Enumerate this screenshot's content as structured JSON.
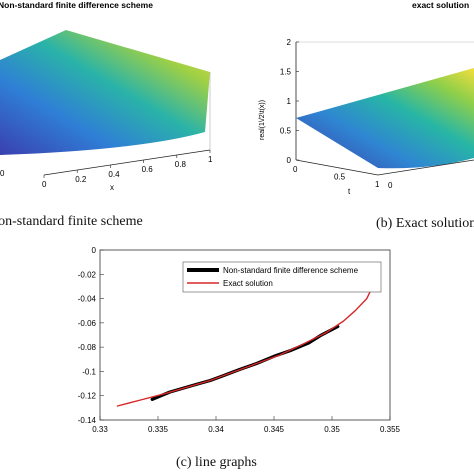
{
  "captions": {
    "a": "Non-standard finite scheme",
    "b": "(b) Exact solution",
    "c": "(c) line graphs"
  },
  "chart_data": [
    {
      "type": "surface",
      "title": "Non-standard finite difference scheme",
      "xlabel": "x",
      "ylabel": "",
      "xticks": [
        "0",
        "0.2",
        "0.4",
        "0.6",
        "0.8",
        "1"
      ],
      "yticks": [
        "0"
      ],
      "colormap": "parula",
      "colors": {
        "low": "#3a3fb0",
        "mid": "#2ab3a8",
        "high": "#f9e03a"
      }
    },
    {
      "type": "surface",
      "title": "exact solution",
      "xlabel": "t",
      "ylabel": "real(1\\/2\\t(x))",
      "zticks": [
        "0",
        "0.5",
        "1",
        "1.5",
        "2"
      ],
      "xticks": [
        "0",
        "0.5",
        "1"
      ],
      "yticks": [
        "0"
      ],
      "zlim": [
        0,
        2
      ],
      "colormap": "parula"
    },
    {
      "type": "line",
      "title": "",
      "xlabel": "",
      "ylabel": "",
      "xlim": [
        0.33,
        0.355
      ],
      "ylim": [
        -0.14,
        0
      ],
      "xticks": [
        "0.33",
        "0.335",
        "0.34",
        "0.345",
        "0.35",
        "0.355"
      ],
      "yticks": [
        "0",
        "-0.02",
        "-0.04",
        "-0.06",
        "-0.08",
        "-0.1",
        "-0.12",
        "-0.14"
      ],
      "xtick_values": [
        0.33,
        0.335,
        0.34,
        0.345,
        0.35,
        0.355
      ],
      "ytick_values": [
        0,
        -0.02,
        -0.04,
        -0.06,
        -0.08,
        -0.1,
        -0.12,
        -0.14
      ],
      "legend": "top-right",
      "series": [
        {
          "name": "Non-standard finite difference scheme",
          "color": "#000000",
          "x": [
            0.3345,
            0.336,
            0.338,
            0.3395,
            0.3405,
            0.342,
            0.3435,
            0.345,
            0.3465,
            0.348,
            0.349,
            0.3505
          ],
          "y": [
            -0.123,
            -0.117,
            -0.1115,
            -0.1075,
            -0.104,
            -0.0985,
            -0.0935,
            -0.0875,
            -0.0825,
            -0.0765,
            -0.0705,
            -0.063
          ]
        },
        {
          "name": "Exact solution",
          "color": "#d62728",
          "x": [
            0.3315,
            0.3335,
            0.3355,
            0.3375,
            0.3395,
            0.3415,
            0.3435,
            0.3455,
            0.3475,
            0.3495,
            0.351,
            0.352,
            0.353,
            0.3535,
            0.354
          ],
          "y": [
            -0.1285,
            -0.1235,
            -0.1185,
            -0.113,
            -0.1075,
            -0.1005,
            -0.0935,
            -0.0865,
            -0.0775,
            -0.068,
            -0.0585,
            -0.05,
            -0.04,
            -0.03,
            -0.013
          ]
        }
      ]
    }
  ]
}
